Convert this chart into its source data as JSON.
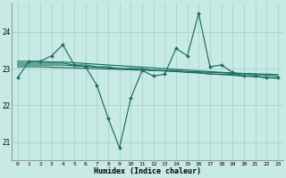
{
  "xlabel": "Humidex (Indice chaleur)",
  "bg_color": "#c8eae4",
  "grid_color": "#a0d0ca",
  "line_color": "#1a6e62",
  "ylim": [
    20.5,
    24.8
  ],
  "xlim": [
    -0.5,
    23.5
  ],
  "yticks": [
    21,
    22,
    23,
    24
  ],
  "xticks": [
    0,
    1,
    2,
    3,
    4,
    5,
    6,
    7,
    8,
    9,
    10,
    11,
    12,
    13,
    14,
    15,
    16,
    17,
    18,
    19,
    20,
    21,
    22,
    23
  ],
  "series": {
    "jagged": [
      22.75,
      23.2,
      23.2,
      23.35,
      23.65,
      23.1,
      23.05,
      22.55,
      21.65,
      20.85,
      22.2,
      22.95,
      22.8,
      22.85,
      23.55,
      23.35,
      24.5,
      23.05,
      23.1,
      22.9,
      22.8,
      22.8,
      22.75,
      22.75
    ],
    "trend1": [
      23.15,
      23.15,
      23.15,
      23.15,
      23.15,
      23.1,
      23.1,
      23.05,
      23.05,
      23.0,
      23.0,
      23.0,
      22.95,
      22.95,
      22.95,
      22.9,
      22.9,
      22.85,
      22.85,
      22.85,
      22.8,
      22.8,
      22.75,
      22.75
    ],
    "trend2": [
      23.1,
      23.1,
      23.1,
      23.1,
      23.1,
      23.08,
      23.06,
      23.04,
      23.02,
      23.0,
      23.0,
      22.98,
      22.96,
      22.94,
      22.92,
      22.9,
      22.88,
      22.86,
      22.84,
      22.82,
      22.8,
      22.78,
      22.76,
      22.74
    ],
    "trend3": [
      23.2,
      23.2,
      23.2,
      23.18,
      23.18,
      23.16,
      23.14,
      23.12,
      23.1,
      23.08,
      23.06,
      23.04,
      23.02,
      23.0,
      22.98,
      22.96,
      22.94,
      22.92,
      22.9,
      22.88,
      22.86,
      22.84,
      22.82,
      22.8
    ],
    "trend4": [
      23.05,
      23.05,
      23.05,
      23.04,
      23.03,
      23.02,
      23.01,
      23.0,
      22.99,
      22.98,
      22.97,
      22.96,
      22.95,
      22.94,
      22.93,
      22.92,
      22.91,
      22.9,
      22.89,
      22.88,
      22.87,
      22.86,
      22.85,
      22.84
    ]
  }
}
